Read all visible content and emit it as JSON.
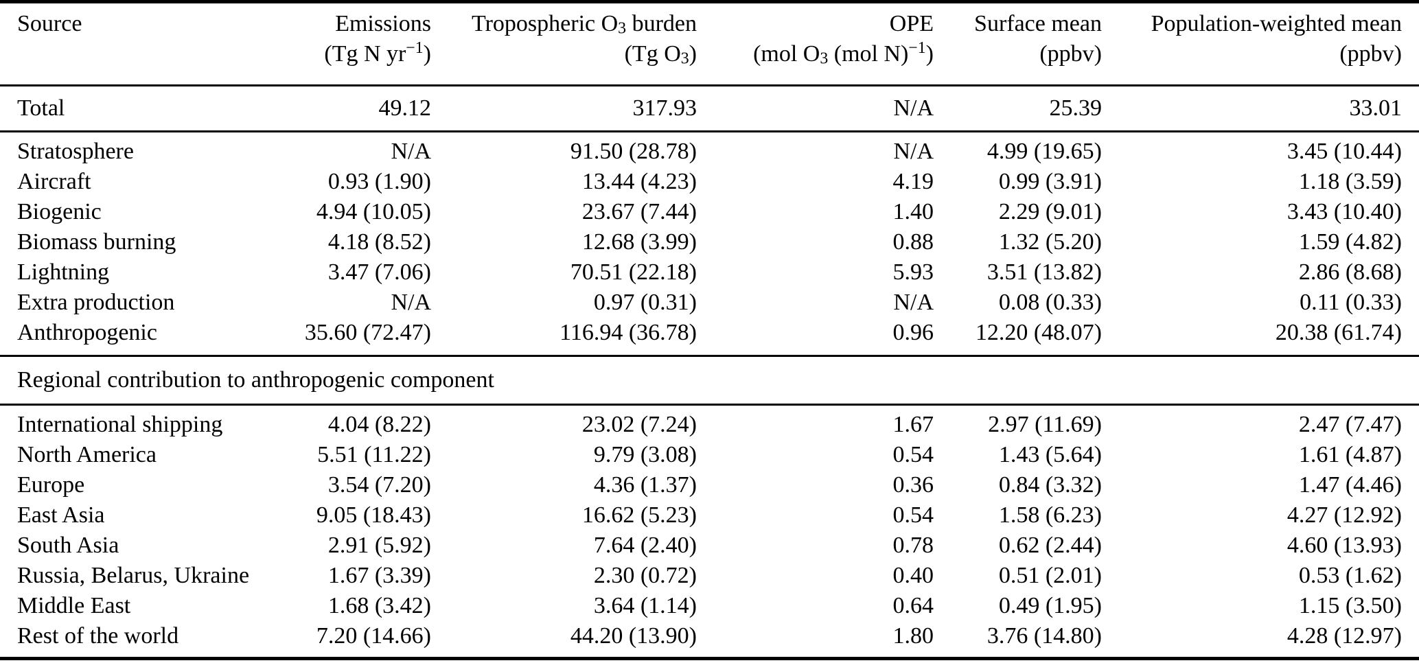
{
  "table": {
    "header": {
      "columns": [
        {
          "label": "Source",
          "unit": ""
        },
        {
          "label": "Emissions",
          "unit": "(Tg N yr<sup>−{}1</sup>)"
        },
        {
          "label": "Tropospheric O<sub>3</sub> burden",
          "unit": "(Tg O<sub>3</sub>)"
        },
        {
          "label": "OPE",
          "unit": "(mol O<sub>3</sub> (mol N)<sup>−{}1</sup>)"
        },
        {
          "label": "Surface mean",
          "unit": "(ppbv)"
        },
        {
          "label": "Population-weighted mean",
          "unit": "(ppbv)"
        }
      ]
    },
    "sections": [
      {
        "name": "total",
        "rows": [
          {
            "source": "Total",
            "values": [
              "49.12",
              "317.93",
              "N/A",
              "25.39",
              "33.01"
            ]
          }
        ]
      },
      {
        "name": "components",
        "rows": [
          {
            "source": "Stratosphere",
            "values": [
              "N/A",
              "91.50 (28.78)",
              "N/A",
              "4.99 (19.65)",
              "3.45 (10.44)"
            ]
          },
          {
            "source": "Aircraft",
            "values": [
              "0.93 (1.90)",
              "13.44 (4.23)",
              "4.19",
              "0.99 (3.91)",
              "1.18 (3.59)"
            ]
          },
          {
            "source": "Biogenic",
            "values": [
              "4.94 (10.05)",
              "23.67 (7.44)",
              "1.40",
              "2.29 (9.01)",
              "3.43 (10.40)"
            ]
          },
          {
            "source": "Biomass burning",
            "values": [
              "4.18 (8.52)",
              "12.68 (3.99)",
              "0.88",
              "1.32 (5.20)",
              "1.59 (4.82)"
            ]
          },
          {
            "source": "Lightning",
            "values": [
              "3.47 (7.06)",
              "70.51 (22.18)",
              "5.93",
              "3.51 (13.82)",
              "2.86 (8.68)"
            ]
          },
          {
            "source": "Extra production",
            "values": [
              "N/A",
              "0.97 (0.31)",
              "N/A",
              "0.08 (0.33)",
              "0.11 (0.33)"
            ]
          },
          {
            "source": "Anthropogenic",
            "values": [
              "35.60 (72.47)",
              "116.94 (36.78)",
              "0.96",
              "12.20 (48.07)",
              "20.38 (61.74)"
            ]
          }
        ]
      },
      {
        "name": "regional",
        "heading": "Regional contribution to anthropogenic component",
        "rows": [
          {
            "source": "International shipping",
            "values": [
              "4.04 (8.22)",
              "23.02 (7.24)",
              "1.67",
              "2.97 (11.69)",
              "2.47 (7.47)"
            ]
          },
          {
            "source": "North America",
            "values": [
              "5.51 (11.22)",
              "9.79 (3.08)",
              "0.54",
              "1.43 (5.64)",
              "1.61 (4.87)"
            ]
          },
          {
            "source": "Europe",
            "values": [
              "3.54 (7.20)",
              "4.36 (1.37)",
              "0.36",
              "0.84 (3.32)",
              "1.47 (4.46)"
            ]
          },
          {
            "source": "East Asia",
            "values": [
              "9.05 (18.43)",
              "16.62 (5.23)",
              "0.54",
              "1.58 (6.23)",
              "4.27 (12.92)"
            ]
          },
          {
            "source": "South Asia",
            "values": [
              "2.91 (5.92)",
              "7.64 (2.40)",
              "0.78",
              "0.62 (2.44)",
              "4.60 (13.93)"
            ]
          },
          {
            "source": "Russia, Belarus, Ukraine",
            "values": [
              "1.67 (3.39)",
              "2.30 (0.72)",
              "0.40",
              "0.51 (2.01)",
              "0.53 (1.62)"
            ]
          },
          {
            "source": "Middle East",
            "values": [
              "1.68 (3.42)",
              "3.64 (1.14)",
              "0.64",
              "0.49 (1.95)",
              "1.15 (3.50)"
            ]
          },
          {
            "source": "Rest of the world",
            "values": [
              "7.20 (14.66)",
              "44.20 (13.90)",
              "1.80",
              "3.76 (14.80)",
              "4.28 (12.97)"
            ]
          }
        ]
      }
    ]
  }
}
